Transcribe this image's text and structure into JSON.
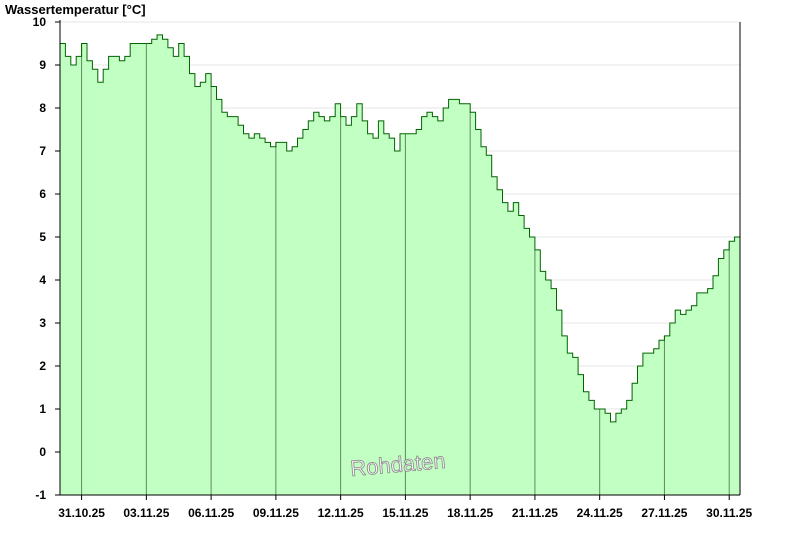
{
  "chart_data": {
    "type": "area",
    "ylabel": "Wassertemperatur [°C]",
    "xlabel": "",
    "watermark": "Rohdaten",
    "ylim": [
      -1,
      10
    ],
    "yticks": [
      -1,
      0,
      1,
      2,
      3,
      4,
      5,
      6,
      7,
      8,
      9,
      10
    ],
    "xlim": [
      "2025-10-30T00:00",
      "2025-11-30T12:00"
    ],
    "xtick_labels": [
      "31.10.25",
      "03.11.25",
      "06.11.25",
      "09.11.25",
      "12.11.25",
      "15.11.25",
      "18.11.25",
      "21.11.25",
      "24.11.25",
      "27.11.25",
      "30.11.25"
    ],
    "xtick_dates": [
      "2025-10-31",
      "2025-11-03",
      "2025-11-06",
      "2025-11-09",
      "2025-11-12",
      "2025-11-15",
      "2025-11-18",
      "2025-11-21",
      "2025-11-24",
      "2025-11-27",
      "2025-11-30"
    ],
    "grid": true,
    "colors": {
      "fill": "#c2ffc2",
      "line": "#006400",
      "gridline": "#e4e4e4",
      "dayline": "#5e8a5e",
      "axis": "#000000"
    },
    "series": [
      {
        "x": [
          "2025-10-30T00:00",
          "2025-10-30T06:00",
          "2025-10-30T12:00",
          "2025-10-30T18:00",
          "2025-10-31T00:00",
          "2025-10-31T06:00",
          "2025-10-31T12:00",
          "2025-10-31T18:00",
          "2025-11-01T00:00",
          "2025-11-01T06:00",
          "2025-11-01T12:00",
          "2025-11-01T18:00",
          "2025-11-02T00:00",
          "2025-11-02T06:00",
          "2025-11-02T12:00",
          "2025-11-02T18:00",
          "2025-11-03T00:00",
          "2025-11-03T06:00",
          "2025-11-03T12:00",
          "2025-11-03T18:00",
          "2025-11-04T00:00",
          "2025-11-04T06:00",
          "2025-11-04T12:00",
          "2025-11-04T18:00",
          "2025-11-05T00:00",
          "2025-11-05T06:00",
          "2025-11-05T12:00",
          "2025-11-05T18:00",
          "2025-11-06T00:00",
          "2025-11-06T06:00",
          "2025-11-06T12:00",
          "2025-11-06T18:00",
          "2025-11-07T00:00",
          "2025-11-07T06:00",
          "2025-11-07T12:00",
          "2025-11-07T18:00",
          "2025-11-08T00:00",
          "2025-11-08T06:00",
          "2025-11-08T12:00",
          "2025-11-08T18:00",
          "2025-11-09T00:00",
          "2025-11-09T06:00",
          "2025-11-09T12:00",
          "2025-11-09T18:00",
          "2025-11-10T00:00",
          "2025-11-10T06:00",
          "2025-11-10T12:00",
          "2025-11-10T18:00",
          "2025-11-11T00:00",
          "2025-11-11T06:00",
          "2025-11-11T12:00",
          "2025-11-11T18:00",
          "2025-11-12T00:00",
          "2025-11-12T06:00",
          "2025-11-12T12:00",
          "2025-11-12T18:00",
          "2025-11-13T00:00",
          "2025-11-13T06:00",
          "2025-11-13T12:00",
          "2025-11-13T18:00",
          "2025-11-14T00:00",
          "2025-11-14T06:00",
          "2025-11-14T12:00",
          "2025-11-14T18:00",
          "2025-11-15T00:00",
          "2025-11-15T06:00",
          "2025-11-15T12:00",
          "2025-11-15T18:00",
          "2025-11-16T00:00",
          "2025-11-16T06:00",
          "2025-11-16T12:00",
          "2025-11-16T18:00",
          "2025-11-17T00:00",
          "2025-11-17T06:00",
          "2025-11-17T12:00",
          "2025-11-17T18:00",
          "2025-11-18T00:00",
          "2025-11-18T06:00",
          "2025-11-18T12:00",
          "2025-11-18T18:00",
          "2025-11-19T00:00",
          "2025-11-19T06:00",
          "2025-11-19T12:00",
          "2025-11-19T18:00",
          "2025-11-20T00:00",
          "2025-11-20T06:00",
          "2025-11-20T12:00",
          "2025-11-20T18:00",
          "2025-11-21T00:00",
          "2025-11-21T06:00",
          "2025-11-21T12:00",
          "2025-11-21T18:00",
          "2025-11-22T00:00",
          "2025-11-22T06:00",
          "2025-11-22T12:00",
          "2025-11-22T18:00",
          "2025-11-23T00:00",
          "2025-11-23T06:00",
          "2025-11-23T12:00",
          "2025-11-23T18:00",
          "2025-11-24T00:00",
          "2025-11-24T06:00",
          "2025-11-24T12:00",
          "2025-11-24T18:00",
          "2025-11-25T00:00",
          "2025-11-25T06:00",
          "2025-11-25T12:00",
          "2025-11-25T18:00",
          "2025-11-26T00:00",
          "2025-11-26T06:00",
          "2025-11-26T12:00",
          "2025-11-26T18:00",
          "2025-11-27T00:00",
          "2025-11-27T06:00",
          "2025-11-27T12:00",
          "2025-11-27T18:00",
          "2025-11-28T00:00",
          "2025-11-28T06:00",
          "2025-11-28T12:00",
          "2025-11-28T18:00",
          "2025-11-29T00:00",
          "2025-11-29T06:00",
          "2025-11-29T12:00",
          "2025-11-29T18:00",
          "2025-11-30T00:00",
          "2025-11-30T06:00",
          "2025-11-30T12:00"
        ],
        "y": [
          9.5,
          9.2,
          9.0,
          9.2,
          9.5,
          9.1,
          8.9,
          8.6,
          8.9,
          9.2,
          9.2,
          9.1,
          9.2,
          9.5,
          9.5,
          9.5,
          9.5,
          9.6,
          9.7,
          9.6,
          9.4,
          9.2,
          9.5,
          9.2,
          8.8,
          8.5,
          8.6,
          8.8,
          8.5,
          8.2,
          7.9,
          7.8,
          7.8,
          7.6,
          7.4,
          7.3,
          7.4,
          7.3,
          7.2,
          7.1,
          7.2,
          7.2,
          7.0,
          7.1,
          7.3,
          7.5,
          7.7,
          7.9,
          7.8,
          7.7,
          7.8,
          8.1,
          7.8,
          7.6,
          7.8,
          8.1,
          7.7,
          7.4,
          7.3,
          7.7,
          7.4,
          7.3,
          7.0,
          7.4,
          7.4,
          7.4,
          7.5,
          7.8,
          7.9,
          7.8,
          7.7,
          8.0,
          8.2,
          8.2,
          8.1,
          8.1,
          7.9,
          7.5,
          7.1,
          6.9,
          6.4,
          6.1,
          5.8,
          5.6,
          5.8,
          5.5,
          5.2,
          5.0,
          4.7,
          4.2,
          4.0,
          3.8,
          3.3,
          2.7,
          2.3,
          2.2,
          1.8,
          1.4,
          1.2,
          1.0,
          1.0,
          0.9,
          0.7,
          0.9,
          1.0,
          1.2,
          1.6,
          2.0,
          2.3,
          2.3,
          2.4,
          2.6,
          2.7,
          3.0,
          3.3,
          3.2,
          3.3,
          3.4,
          3.7,
          3.7,
          3.8,
          4.1,
          4.5,
          4.7,
          4.9,
          5.0,
          5.2
        ]
      }
    ]
  }
}
